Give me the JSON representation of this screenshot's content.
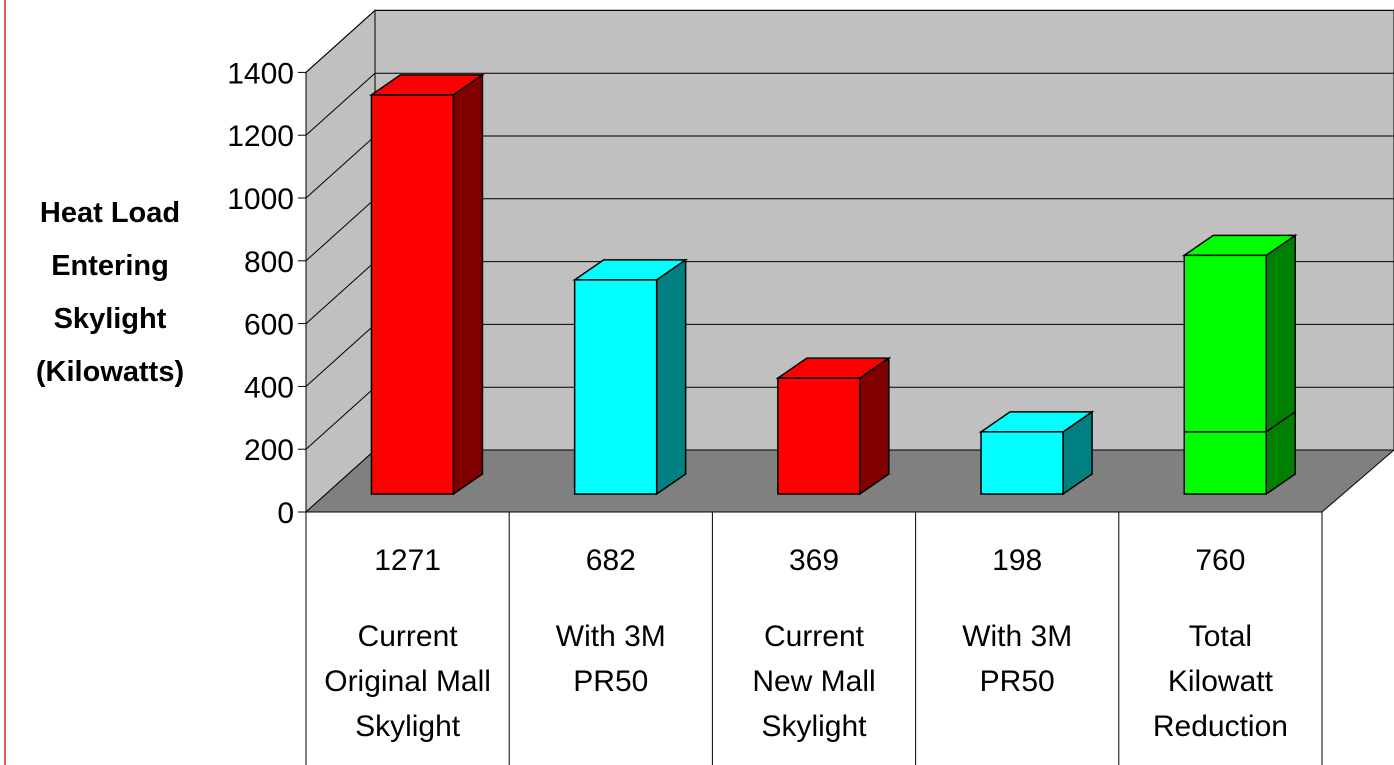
{
  "chart_data": {
    "type": "bar",
    "title": "",
    "xlabel": "",
    "ylabel": [
      "Heat Load",
      "Entering",
      "Skylight",
      "(Kilowatts)"
    ],
    "ylim": [
      0,
      1400
    ],
    "yticks": [
      "0",
      "200",
      "400",
      "600",
      "800",
      "1000",
      "1200",
      "1400"
    ],
    "grid": true,
    "legend": "none",
    "categories": [
      [
        "Current",
        "Original Mall",
        "Skylight"
      ],
      [
        "With 3M",
        "PR50"
      ],
      [
        "Current",
        "New Mall",
        "Skylight"
      ],
      [
        "With 3M",
        "PR50"
      ],
      [
        "Total",
        "Kilowatt",
        "Reduction"
      ]
    ],
    "values": [
      1271,
      682,
      369,
      198,
      760
    ],
    "value_labels": [
      "1271",
      "682",
      "369",
      "198",
      "760"
    ],
    "bar_colors": [
      "#ff0000",
      "#00ffff",
      "#ff0000",
      "#00ffff",
      "#00ff00"
    ],
    "bar_side_colors": [
      "#800000",
      "#008080",
      "#800000",
      "#008080",
      "#008000"
    ],
    "segment_marker": {
      "bar_index": 4,
      "value": 198
    }
  },
  "theme": {
    "wall_color": "#c0c0c0",
    "floor_color": "#808080",
    "gridline_color": "#000000"
  }
}
